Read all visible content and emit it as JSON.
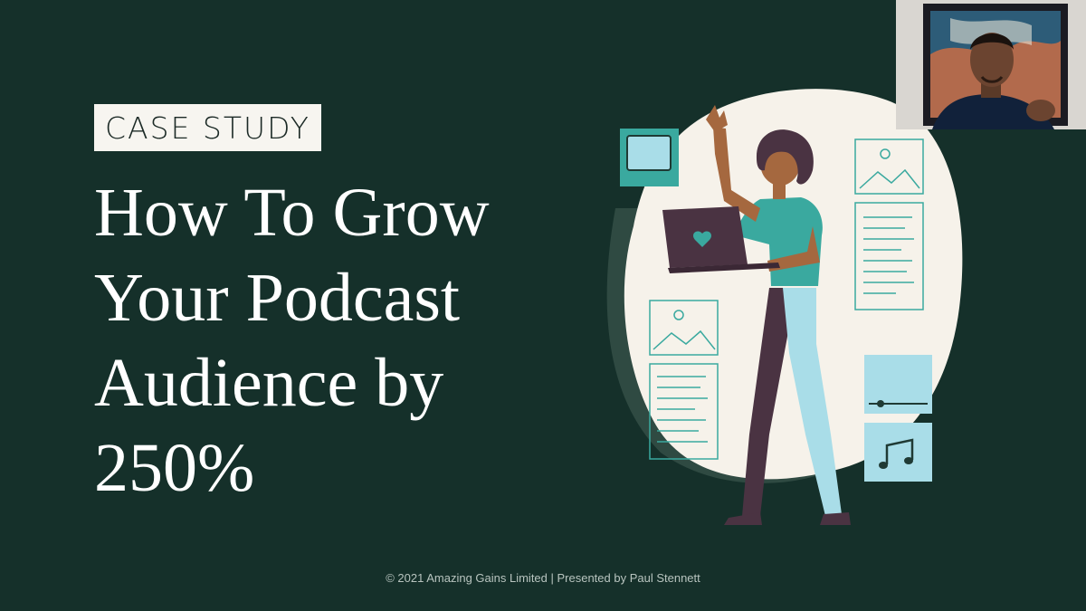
{
  "slide": {
    "kicker": "CASE STUDY",
    "title": "How To Grow\nYour Podcast\nAudience by\n250%",
    "footer": "© 2021 Amazing Gains Limited | Presented by Paul Stennett"
  },
  "colors": {
    "background": "#15302a",
    "kicker_bg": "#f7f5f0",
    "accent_teal": "#3aa99f",
    "light_blue": "#a9dde8",
    "laptop": "#4a3342"
  },
  "illustration": {
    "icons": [
      "monitor-icon",
      "image-icon",
      "document-icon",
      "slider-icon",
      "music-note-icon",
      "heart-icon"
    ]
  },
  "webcam": {
    "subject": "presenter-webcam"
  }
}
